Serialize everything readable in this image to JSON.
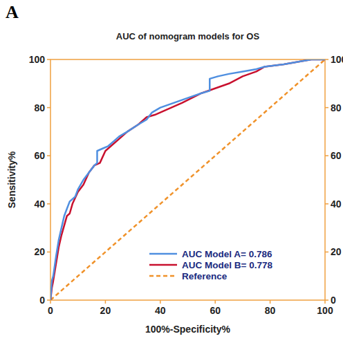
{
  "chart_data": {
    "type": "line",
    "title": "AUC of nomogram models for OS",
    "annotations": [
      "A"
    ],
    "x_label": "100%-Specificity%",
    "y_label": "Sensitivity%",
    "xlim": [
      0,
      100
    ],
    "ylim": [
      0,
      100
    ],
    "xticks": [
      0,
      20,
      40,
      60,
      80,
      100
    ],
    "yticks": [
      0,
      20,
      40,
      60,
      80,
      100
    ],
    "legend": "lower right",
    "series": [
      {
        "name": "AUC Model A= 0.786",
        "color": "#4f8fe0",
        "line_style": "solid",
        "x": [
          0,
          0.5,
          1,
          2,
          3,
          4,
          5,
          6,
          7,
          9,
          10,
          12,
          14,
          16,
          17,
          17,
          19,
          21,
          23,
          25,
          28,
          32,
          35,
          37,
          40,
          45,
          50,
          55,
          58,
          58,
          61,
          65,
          70,
          75,
          78,
          85,
          90,
          95,
          100
        ],
        "values": [
          0,
          8,
          10,
          18,
          25,
          30,
          35,
          38,
          41,
          43,
          46,
          50,
          53,
          56,
          57,
          62,
          63,
          64,
          66,
          68,
          70,
          73,
          75,
          78,
          80,
          82,
          84,
          86,
          87,
          92,
          93,
          94,
          95,
          96,
          97,
          98,
          99,
          100,
          100
        ]
      },
      {
        "name": "AUC Model B= 0.778",
        "color": "#c8102e",
        "line_style": "solid",
        "x": [
          0,
          0.5,
          1,
          2,
          3,
          4,
          5,
          6,
          7,
          8,
          10,
          12,
          14,
          16,
          18,
          20,
          22,
          25,
          28,
          32,
          35,
          38,
          42,
          48,
          55,
          60,
          65,
          70,
          75,
          78,
          85,
          90,
          95,
          100
        ],
        "values": [
          0,
          5,
          8,
          15,
          22,
          27,
          31,
          35,
          36,
          40,
          45,
          48,
          53,
          56,
          57,
          62,
          64,
          67,
          70,
          73,
          76,
          77,
          79,
          82,
          86,
          88,
          90,
          93,
          95,
          97,
          98,
          99,
          100,
          100
        ]
      },
      {
        "name": "Reference",
        "color": "#f0922a",
        "line_style": "dashed",
        "x": [
          0,
          100
        ],
        "values": [
          0,
          100
        ]
      }
    ]
  }
}
